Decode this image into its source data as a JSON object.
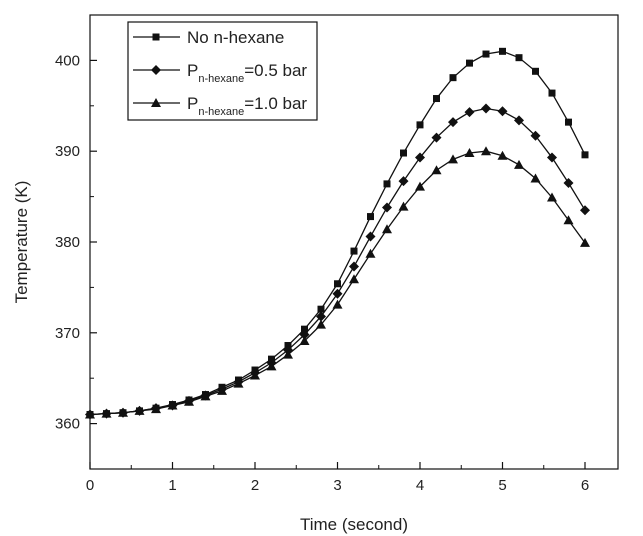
{
  "chart_data": {
    "type": "line",
    "title": "",
    "xlabel": "Time (second)",
    "ylabel": "Temperature (K)",
    "xlim": [
      0,
      6.4
    ],
    "ylim": [
      355,
      405
    ],
    "xticks": [
      0,
      1,
      2,
      3,
      4,
      5,
      6
    ],
    "yticks": [
      360,
      370,
      380,
      390,
      400
    ],
    "grid": false,
    "legend_position": "top-left",
    "series": [
      {
        "name": "No n-hexane",
        "label_main": "No n-hexane",
        "label_sub": "",
        "label_suffix": "",
        "marker": "square",
        "x": [
          0,
          0.2,
          0.4,
          0.6,
          0.8,
          1.0,
          1.2,
          1.4,
          1.6,
          1.8,
          2.0,
          2.2,
          2.4,
          2.6,
          2.8,
          3.0,
          3.2,
          3.4,
          3.6,
          3.8,
          4.0,
          4.2,
          4.4,
          4.6,
          4.8,
          5.0,
          5.2,
          5.4,
          5.6,
          5.8,
          6.0
        ],
        "y": [
          361.0,
          361.1,
          361.2,
          361.4,
          361.7,
          362.1,
          362.6,
          363.2,
          364.0,
          364.8,
          365.9,
          367.1,
          368.6,
          370.4,
          372.6,
          375.4,
          379.0,
          382.8,
          386.4,
          389.8,
          392.9,
          395.8,
          398.1,
          399.7,
          400.7,
          401.0,
          400.3,
          398.8,
          396.4,
          393.2,
          389.6
        ]
      },
      {
        "name": "P n-hexane = 0.5 bar",
        "label_main": "P",
        "label_sub": "n-hexane",
        "label_suffix": "=0.5 bar",
        "marker": "diamond",
        "x": [
          0,
          0.2,
          0.4,
          0.6,
          0.8,
          1.0,
          1.2,
          1.4,
          1.6,
          1.8,
          2.0,
          2.2,
          2.4,
          2.6,
          2.8,
          3.0,
          3.2,
          3.4,
          3.6,
          3.8,
          4.0,
          4.2,
          4.4,
          4.6,
          4.8,
          5.0,
          5.2,
          5.4,
          5.6,
          5.8,
          6.0
        ],
        "y": [
          361.0,
          361.1,
          361.2,
          361.4,
          361.7,
          362.0,
          362.5,
          363.1,
          363.8,
          364.6,
          365.6,
          366.7,
          368.1,
          369.8,
          371.8,
          374.3,
          377.3,
          380.6,
          383.8,
          386.7,
          389.3,
          391.5,
          393.2,
          394.3,
          394.7,
          394.4,
          393.4,
          391.7,
          389.3,
          386.5,
          383.5
        ]
      },
      {
        "name": "P n-hexane = 1.0 bar",
        "label_main": "P",
        "label_sub": "n-hexane",
        "label_suffix": "=1.0 bar",
        "marker": "triangle",
        "x": [
          0,
          0.2,
          0.4,
          0.6,
          0.8,
          1.0,
          1.2,
          1.4,
          1.6,
          1.8,
          2.0,
          2.2,
          2.4,
          2.6,
          2.8,
          3.0,
          3.2,
          3.4,
          3.6,
          3.8,
          4.0,
          4.2,
          4.4,
          4.6,
          4.8,
          5.0,
          5.2,
          5.4,
          5.6,
          5.8,
          6.0
        ],
        "y": [
          361.0,
          361.1,
          361.2,
          361.4,
          361.6,
          362.0,
          362.4,
          363.0,
          363.6,
          364.4,
          365.3,
          366.3,
          367.6,
          369.1,
          370.9,
          373.1,
          375.9,
          378.7,
          381.4,
          383.9,
          386.1,
          387.9,
          389.1,
          389.8,
          390.0,
          389.5,
          388.5,
          387.0,
          384.9,
          382.4,
          379.9
        ]
      }
    ]
  }
}
